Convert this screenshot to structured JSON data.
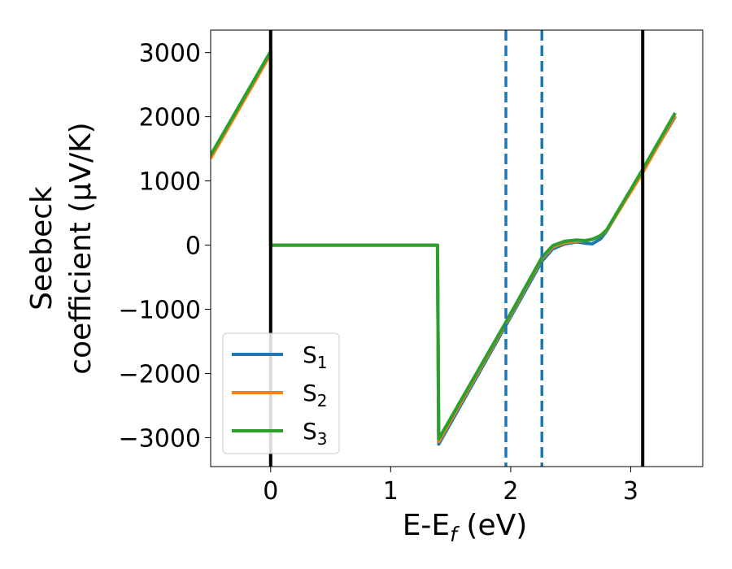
{
  "chart_data": {
    "type": "line",
    "title": "",
    "xlabel": {
      "base": "E-E",
      "sub": "f",
      "rest": " (eV)"
    },
    "ylabel": {
      "line1": "Seebeck",
      "line2": "coefficient  (μV/K)"
    },
    "xlim": [
      -0.5,
      3.6
    ],
    "ylim": [
      -3450,
      3350
    ],
    "xticks": [
      0,
      1,
      2,
      3
    ],
    "xtick_labels": [
      "0",
      "1",
      "2",
      "3"
    ],
    "yticks": [
      -3000,
      -2000,
      -1000,
      0,
      1000,
      2000,
      3000
    ],
    "ytick_labels": [
      "−3000",
      "−2000",
      "−1000",
      "0",
      "1000",
      "2000",
      "3000"
    ],
    "grid": false,
    "legend_position": "lower-left",
    "vertical_lines": [
      {
        "x": 0.0,
        "style": "solid",
        "color": "#000000"
      },
      {
        "x": 3.1,
        "style": "solid",
        "color": "#000000"
      },
      {
        "x": 1.96,
        "style": "dashed",
        "color": "#1f77b4"
      },
      {
        "x": 2.26,
        "style": "dashed",
        "color": "#1f77b4"
      }
    ],
    "series": [
      {
        "name": "S",
        "sub": "1",
        "color": "#1f77b4",
        "x": [
          -0.5,
          0.0,
          0.0,
          1.39,
          1.39,
          1.4,
          1.96,
          2.26,
          2.35,
          2.45,
          2.55,
          2.62,
          2.68,
          2.75,
          2.8,
          3.1,
          3.37
        ],
        "y": [
          1400,
          3000,
          0,
          0,
          0,
          -3100,
          -1250,
          -250,
          -60,
          20,
          50,
          30,
          20,
          100,
          220,
          1150,
          2000
        ]
      },
      {
        "name": "S",
        "sub": "2",
        "color": "#ff7f0e",
        "x": [
          -0.5,
          0.0,
          0.0,
          1.39,
          1.39,
          1.4,
          1.96,
          2.26,
          2.35,
          2.45,
          2.55,
          2.62,
          2.68,
          2.75,
          2.8,
          3.1,
          3.37
        ],
        "y": [
          1350,
          2980,
          0,
          0,
          0,
          -3060,
          -1220,
          -210,
          -30,
          40,
          60,
          70,
          90,
          150,
          230,
          1130,
          2020
        ]
      },
      {
        "name": "S",
        "sub": "3",
        "color": "#2ca02c",
        "x": [
          -0.5,
          0.0,
          0.0,
          1.39,
          1.39,
          1.4,
          1.96,
          2.26,
          2.35,
          2.45,
          2.55,
          2.62,
          2.68,
          2.75,
          2.8,
          3.1,
          3.37
        ],
        "y": [
          1400,
          3020,
          0,
          0,
          0,
          -3020,
          -1200,
          -190,
          -10,
          60,
          80,
          70,
          90,
          150,
          240,
          1180,
          2060
        ]
      }
    ]
  }
}
